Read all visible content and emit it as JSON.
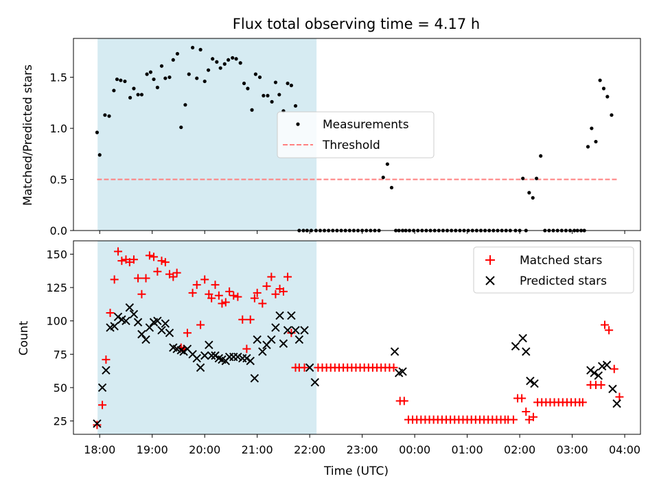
{
  "chart_data": [
    {
      "type": "scatter",
      "title": "Flux total observing time = 4.17 h",
      "ylabel": "Matched/Predicted stars",
      "xlabel": "",
      "ylim": [
        0,
        1.88
      ],
      "xlim_hours": [
        -0.5,
        10.3
      ],
      "x_tick_hours": [
        0,
        1,
        2,
        3,
        4,
        5,
        6,
        7,
        8,
        9,
        10
      ],
      "y_ticks": [
        0,
        0.5,
        1,
        1.5
      ],
      "y_tick_labels": [
        "0.0",
        "0.5",
        "1.0",
        "1.5"
      ],
      "observing_window_hours": [
        -0.04,
        4.13
      ],
      "observing_window_color": "#add8e6",
      "legend": [
        "Measurements",
        "Threshold"
      ],
      "legend_position": "center",
      "threshold": {
        "value": 0.5,
        "x_range_hours": [
          -0.05,
          9.85
        ],
        "color": "#ff7f7f"
      },
      "series": [
        {
          "name": "Measurements",
          "color": "#000000",
          "x": [
            -0.05,
            0.0,
            0.1,
            0.18,
            0.27,
            0.33,
            0.4,
            0.48,
            0.58,
            0.65,
            0.73,
            0.8,
            0.9,
            0.97,
            1.03,
            1.1,
            1.18,
            1.25,
            1.33,
            1.4,
            1.48,
            1.55,
            1.63,
            1.7,
            1.77,
            1.85,
            1.92,
            2.0,
            2.07,
            2.15,
            2.23,
            2.3,
            2.38,
            2.45,
            2.53,
            2.6,
            2.68,
            2.75,
            2.82,
            2.9,
            2.97,
            3.05,
            3.12,
            3.2,
            3.28,
            3.35,
            3.42,
            3.5,
            3.58,
            3.65,
            3.73,
            3.8,
            3.88,
            3.95,
            4.03,
            4.12,
            4.2,
            4.28,
            4.36,
            4.44,
            4.52,
            4.6,
            4.68,
            4.76,
            4.84,
            4.92,
            5.0,
            5.08,
            5.16,
            5.24,
            5.32,
            5.4,
            5.48,
            5.56,
            5.64,
            5.7,
            5.77,
            5.83,
            5.9,
            5.98,
            6.06,
            6.14,
            6.22,
            6.3,
            6.38,
            6.46,
            6.54,
            6.62,
            6.7,
            6.78,
            6.86,
            6.94,
            7.02,
            7.1,
            7.18,
            7.26,
            7.34,
            7.42,
            7.5,
            7.58,
            7.66,
            7.74,
            7.82,
            7.92,
            8.0,
            8.06,
            8.12,
            8.18,
            8.25,
            8.32,
            8.4,
            8.48,
            8.56,
            8.64,
            8.72,
            8.8,
            8.88,
            8.96,
            9.04,
            9.1,
            9.17,
            9.23,
            9.3,
            9.37,
            9.45,
            9.53,
            9.6,
            9.67,
            9.75
          ],
          "y": [
            0.96,
            0.74,
            1.13,
            1.12,
            1.37,
            1.48,
            1.47,
            1.46,
            1.3,
            1.39,
            1.33,
            1.33,
            1.53,
            1.55,
            1.48,
            1.4,
            1.61,
            1.49,
            1.5,
            1.67,
            1.73,
            1.01,
            1.23,
            1.53,
            1.79,
            1.49,
            1.77,
            1.46,
            1.57,
            1.68,
            1.65,
            1.59,
            1.63,
            1.67,
            1.69,
            1.68,
            1.64,
            1.44,
            1.39,
            1.18,
            1.53,
            1.5,
            1.32,
            1.32,
            1.26,
            1.45,
            1.33,
            1.17,
            1.44,
            1.42,
            1.22,
            0,
            0,
            0,
            0,
            0,
            0,
            0,
            0,
            0,
            0,
            0,
            0,
            0,
            0,
            0,
            0,
            0,
            0,
            0,
            0,
            0.52,
            0.65,
            0.42,
            0,
            0,
            0,
            0,
            0,
            0,
            0,
            0,
            0,
            0,
            0,
            0,
            0,
            0,
            0,
            0,
            0,
            0,
            0,
            0,
            0,
            0,
            0,
            0,
            0,
            0,
            0,
            0,
            0,
            0,
            0,
            0.51,
            0,
            0.37,
            0.32,
            0.51,
            0.73,
            0,
            0,
            0,
            0,
            0,
            0,
            0,
            0,
            0,
            0,
            0,
            0.82,
            1.0,
            0.87,
            1.47,
            1.39,
            1.31,
            1.13
          ]
        }
      ]
    },
    {
      "type": "scatter",
      "ylabel": "Count",
      "xlabel": "Time (UTC)",
      "ylim": [
        15,
        160
      ],
      "xlim_hours": [
        -0.5,
        10.3
      ],
      "x_tick_hours": [
        0,
        1,
        2,
        3,
        4,
        5,
        6,
        7,
        8,
        9,
        10
      ],
      "x_tick_labels": [
        "18:00",
        "19:00",
        "20:00",
        "21:00",
        "22:00",
        "23:00",
        "00:00",
        "01:00",
        "02:00",
        "03:00",
        "04:00"
      ],
      "y_ticks": [
        25,
        50,
        75,
        100,
        125,
        150
      ],
      "y_tick_labels": [
        "25",
        "50",
        "75",
        "100",
        "125",
        "150"
      ],
      "observing_window_hours": [
        -0.04,
        4.13
      ],
      "observing_window_color": "#add8e6",
      "legend": [
        "Matched stars",
        "Predicted stars"
      ],
      "legend_position": "upper right",
      "series": [
        {
          "name": "Matched stars",
          "marker": "plus",
          "color": "#ff0000",
          "x": [
            -0.05,
            0.05,
            0.12,
            0.2,
            0.28,
            0.35,
            0.42,
            0.5,
            0.57,
            0.65,
            0.73,
            0.8,
            0.88,
            0.95,
            1.03,
            1.1,
            1.18,
            1.25,
            1.33,
            1.4,
            1.47,
            1.55,
            1.6,
            1.67,
            1.77,
            1.85,
            1.92,
            2.0,
            2.08,
            2.13,
            2.2,
            2.27,
            2.33,
            2.4,
            2.47,
            2.55,
            2.63,
            2.72,
            2.8,
            2.87,
            2.95,
            3.0,
            3.1,
            3.18,
            3.27,
            3.35,
            3.43,
            3.5,
            3.58,
            3.65,
            3.73,
            3.8,
            3.9
          ],
          "y": [
            22,
            37,
            71,
            106,
            131,
            152,
            145,
            146,
            144,
            146,
            132,
            120,
            132,
            149,
            148,
            137,
            145,
            144,
            135,
            133,
            136,
            80,
            79,
            91,
            121,
            127,
            97,
            131,
            120,
            117,
            127,
            119,
            113,
            114,
            122,
            119,
            118,
            101,
            79,
            101,
            117,
            121,
            113,
            126,
            133,
            120,
            124,
            122,
            133,
            91,
            65,
            65,
            65
          ],
          "x_extra": [
            4.16,
            4.24,
            4.32,
            4.4,
            4.48,
            4.56,
            4.64,
            4.72,
            4.8,
            4.88,
            4.96,
            5.04,
            5.12,
            5.2,
            5.28,
            5.36,
            5.44,
            5.52,
            5.6,
            5.72,
            5.8,
            5.88,
            5.96,
            6.04,
            6.12,
            6.2,
            6.28,
            6.36,
            6.44,
            6.52,
            6.6,
            6.68,
            6.76,
            6.84,
            6.92,
            7.0,
            7.08,
            7.16,
            7.24,
            7.32,
            7.4,
            7.48,
            7.56,
            7.64,
            7.72,
            7.78,
            7.88,
            7.96,
            8.04,
            8.12,
            8.18,
            8.26,
            8.34,
            8.42,
            8.5,
            8.58,
            8.66,
            8.74,
            8.82,
            8.9,
            8.98,
            9.06,
            9.14,
            9.2,
            9.35,
            9.45,
            9.55,
            9.62,
            9.7,
            9.8,
            9.9
          ],
          "y_extra": [
            65,
            65,
            65,
            65,
            65,
            65,
            65,
            65,
            65,
            65,
            65,
            65,
            65,
            65,
            65,
            65,
            65,
            65,
            65,
            40,
            40,
            26,
            26,
            26,
            26,
            26,
            26,
            26,
            26,
            26,
            26,
            26,
            26,
            26,
            26,
            26,
            26,
            26,
            26,
            26,
            26,
            26,
            26,
            26,
            26,
            26,
            26,
            42,
            42,
            32,
            26,
            28,
            39,
            39,
            39,
            39,
            39,
            39,
            39,
            39,
            39,
            39,
            39,
            39,
            52,
            52,
            52,
            97,
            93,
            64,
            43
          ]
        },
        {
          "name": "Predicted stars",
          "marker": "x",
          "color": "#000000",
          "x": [
            -0.05,
            0.05,
            0.12,
            0.2,
            0.28,
            0.35,
            0.42,
            0.5,
            0.57,
            0.65,
            0.73,
            0.8,
            0.88,
            0.95,
            1.03,
            1.1,
            1.18,
            1.25,
            1.33,
            1.4,
            1.47,
            1.55,
            1.6,
            1.67,
            1.77,
            1.85,
            1.92,
            2.0,
            2.08,
            2.13,
            2.2,
            2.27,
            2.33,
            2.4,
            2.47,
            2.55,
            2.63,
            2.72,
            2.8,
            2.87,
            2.95,
            3.0,
            3.1,
            3.18,
            3.27,
            3.35,
            3.43,
            3.5,
            3.58,
            3.65,
            3.73,
            3.8,
            3.9,
            4.0,
            4.1,
            5.62,
            5.7,
            5.77,
            7.92,
            8.06,
            8.12,
            8.2,
            8.28,
            9.35,
            9.42,
            9.5,
            9.57,
            9.66,
            9.77,
            9.85
          ],
          "y": [
            23,
            50,
            63,
            95,
            96,
            103,
            101,
            100,
            110,
            105,
            99,
            90,
            86,
            95,
            99,
            100,
            93,
            98,
            91,
            80,
            79,
            78,
            77,
            79,
            75,
            72,
            65,
            74,
            82,
            74,
            74,
            72,
            71,
            70,
            73,
            73,
            73,
            72,
            72,
            70,
            57,
            86,
            77,
            82,
            86,
            95,
            104,
            83,
            93,
            104,
            93,
            86,
            93,
            65,
            54,
            77,
            61,
            62,
            81,
            87,
            77,
            55,
            53,
            63,
            61,
            59,
            66,
            67,
            49,
            38
          ]
        }
      ]
    }
  ]
}
